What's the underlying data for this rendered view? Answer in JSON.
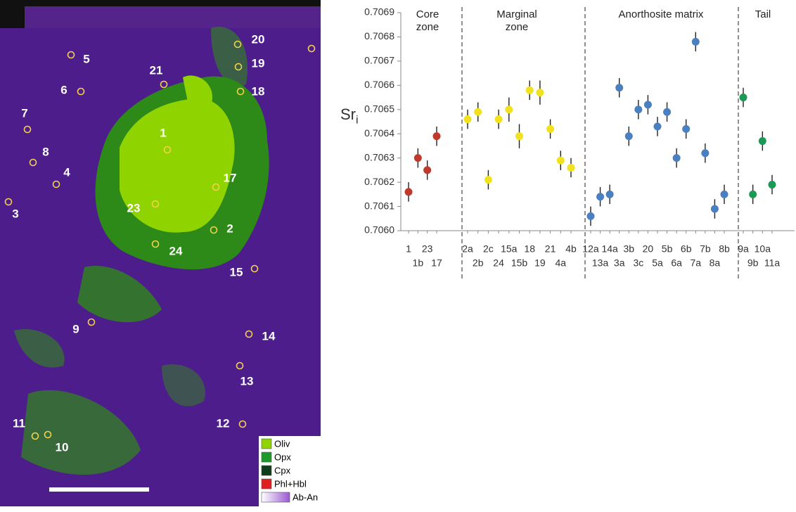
{
  "map": {
    "sites": [
      "20",
      "5",
      "19",
      "21",
      "6",
      "18",
      "7",
      "1",
      "8",
      "4",
      "17",
      "3",
      "23",
      "2",
      "24",
      "15",
      "9",
      "14",
      "13",
      "12",
      "11",
      "10"
    ],
    "legend": [
      {
        "label": "Oliv",
        "color": "#8fd400"
      },
      {
        "label": "Opx",
        "color": "#1f9a2a"
      },
      {
        "label": "Cpx",
        "color": "#0d3d1a"
      },
      {
        "label": "Phl+Hbl",
        "color": "#e02020"
      },
      {
        "label": "Ab-An",
        "color": "#9b59d0"
      }
    ]
  },
  "chart_data": {
    "type": "scatter",
    "y_label": "Sr",
    "y_label_sub": "i",
    "ylim": [
      0.706,
      0.7069
    ],
    "yticks": [
      {
        "value": 0.706,
        "label": "0.7060"
      },
      0.7061,
      0.7062,
      0.7063,
      0.7064,
      0.7065,
      0.7066,
      0.7067,
      0.7068,
      0.7069
    ],
    "series": [
      {
        "name": "Core zone",
        "color": "#c0392b",
        "categories": [
          "1",
          "1b",
          "23",
          "17"
        ],
        "values": [
          0.70616,
          0.7063,
          0.70625,
          0.70639
        ],
        "errors": [
          4e-05,
          4e-05,
          4e-05,
          4e-05
        ]
      },
      {
        "name": "Marginal zone",
        "color": "#f2e21e",
        "categories": [
          "2a",
          "2b",
          "2c",
          "24",
          "15a",
          "15b",
          "18",
          "19",
          "21",
          "4a",
          "4b"
        ],
        "values": [
          0.70646,
          0.70649,
          0.70621,
          0.70646,
          0.7065,
          0.70639,
          0.70658,
          0.70657,
          0.70642,
          0.70629,
          0.70626
        ],
        "errors": [
          4e-05,
          4e-05,
          4e-05,
          4e-05,
          5e-05,
          5e-05,
          4e-05,
          5e-05,
          4e-05,
          4e-05,
          4e-05
        ]
      },
      {
        "name": "Anorthosite matrix",
        "color": "#4a7fc0",
        "categories": [
          "12a",
          "13a",
          "14a",
          "3a",
          "3b",
          "3c",
          "20",
          "5a",
          "5b",
          "6a",
          "6b",
          "7a",
          "7b",
          "8a",
          "8b"
        ],
        "values": [
          0.70606,
          0.70614,
          0.70615,
          0.70659,
          0.70639,
          0.7065,
          0.70652,
          0.70643,
          0.70649,
          0.7063,
          0.70642,
          0.70678,
          0.70632,
          0.70609,
          0.70615
        ],
        "errors": [
          4e-05,
          4e-05,
          4e-05,
          4e-05,
          4e-05,
          4e-05,
          4e-05,
          4e-05,
          4e-05,
          4e-05,
          4e-05,
          4e-05,
          4e-05,
          4e-05,
          4e-05
        ]
      },
      {
        "name": "Tail",
        "color": "#1a9a55",
        "categories": [
          "9a",
          "9b",
          "10a",
          "11a"
        ],
        "values": [
          0.70655,
          0.70615,
          0.70637,
          0.70619
        ],
        "errors": [
          4e-05,
          4e-05,
          4e-05,
          4e-05
        ]
      }
    ]
  }
}
